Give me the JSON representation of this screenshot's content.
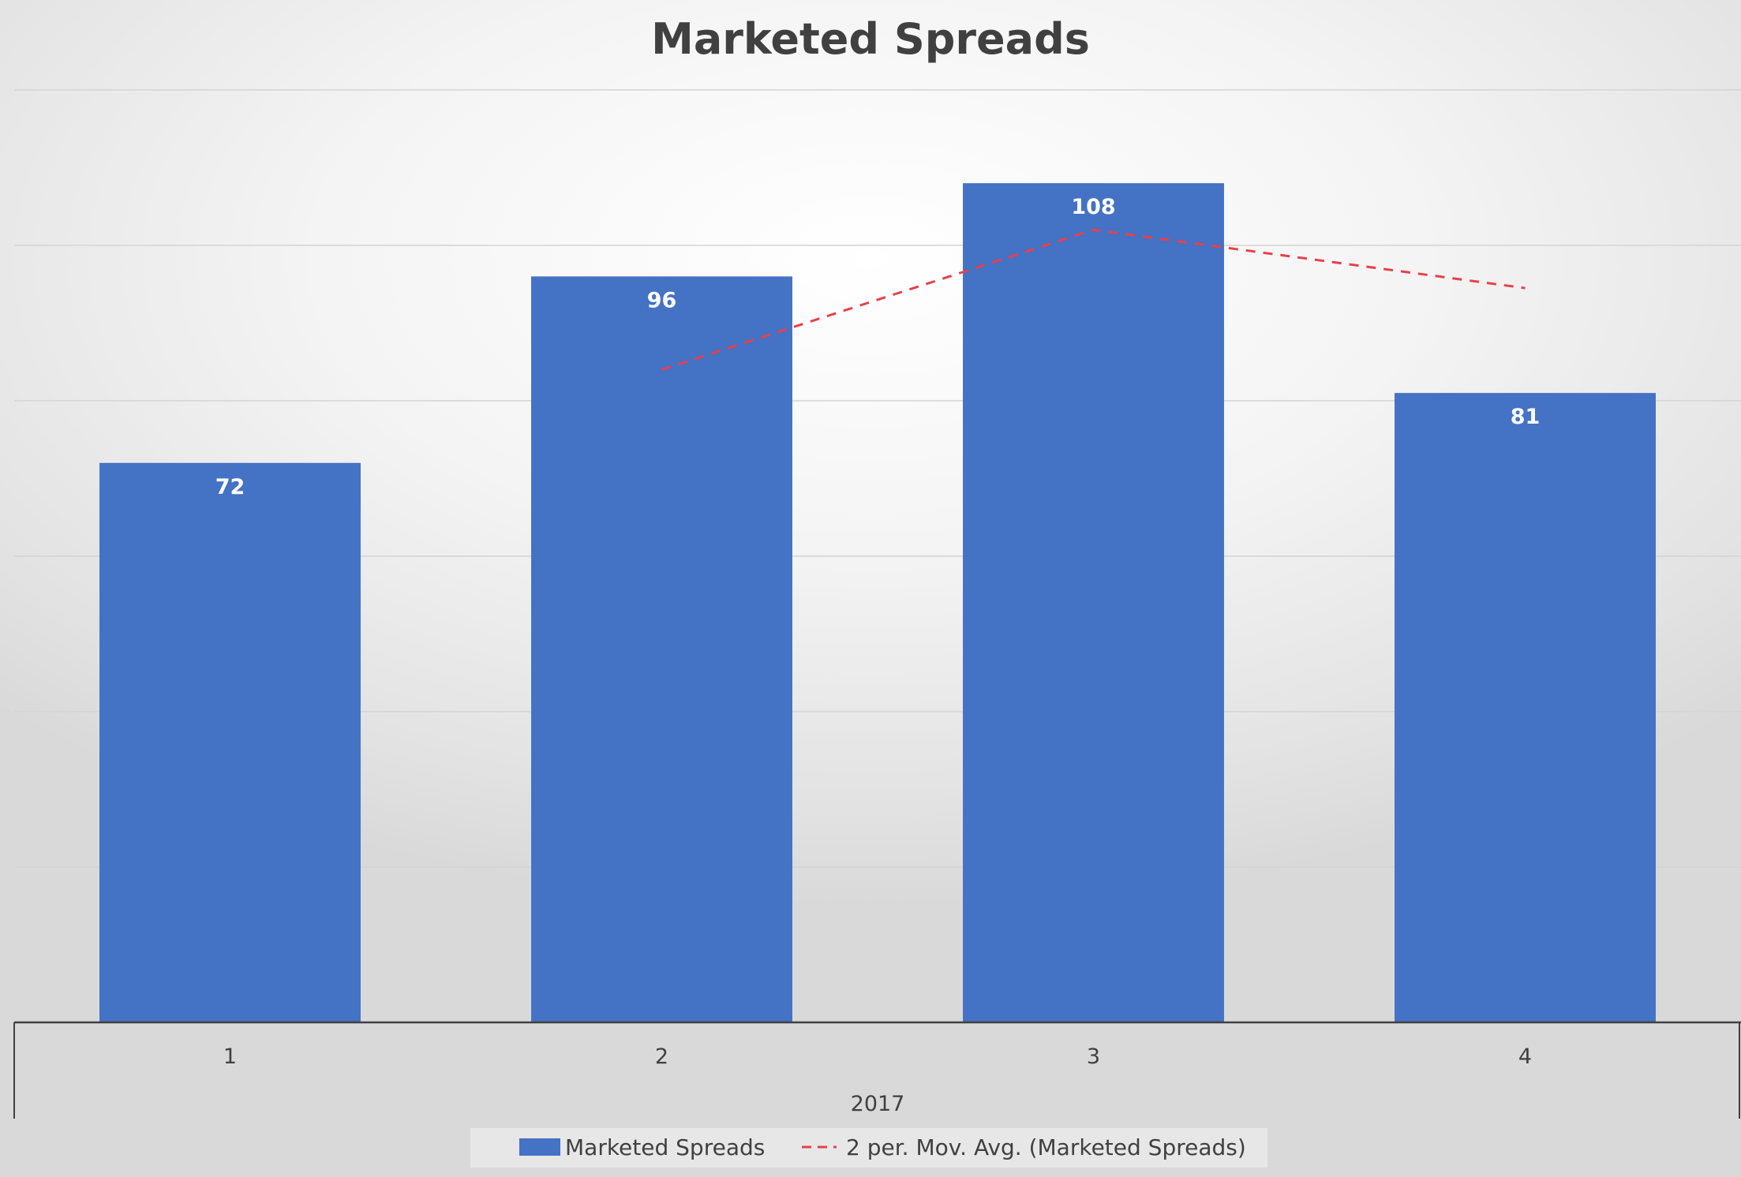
{
  "chart_data": {
    "type": "bar",
    "title": "Marketed Spreads",
    "categories": [
      "1",
      "2",
      "3",
      "4"
    ],
    "group_label": "2017",
    "series": [
      {
        "name": "Marketed Spreads",
        "values": [
          72,
          96,
          108,
          81
        ],
        "color": "#4472C4"
      }
    ],
    "trendline": {
      "name": "2 per. Mov. Avg. (Marketed Spreads)",
      "type": "moving-average",
      "period": 2,
      "values": [
        null,
        84,
        102,
        94.5
      ],
      "color": "#E8404A"
    },
    "data_labels": [
      "72",
      "96",
      "108",
      "81"
    ],
    "ylim": [
      0,
      120
    ],
    "gridline_step": 20,
    "grid": true,
    "legend_position": "bottom",
    "xlabel": "",
    "ylabel": ""
  }
}
